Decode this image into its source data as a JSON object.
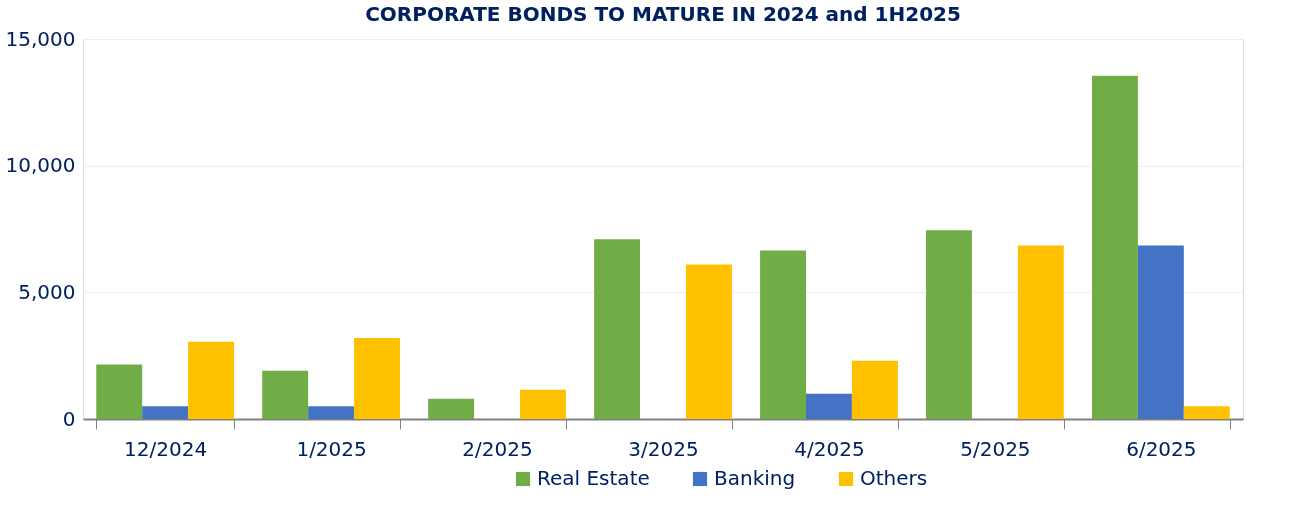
{
  "chart_data": {
    "type": "bar",
    "title": "CORPORATE BONDS TO MATURE IN 2024 and 1H2025",
    "categories": [
      "12/2024",
      "1/2025",
      "2/2025",
      "3/2025",
      "4/2025",
      "5/2025",
      "6/2025"
    ],
    "series": [
      {
        "name": "Real Estate",
        "color": "#70ad47",
        "values": [
          2150,
          1900,
          800,
          7100,
          6650,
          7450,
          13550
        ]
      },
      {
        "name": "Banking",
        "color": "#4472c4",
        "values": [
          500,
          500,
          null,
          null,
          1000,
          null,
          6850
        ]
      },
      {
        "name": "Others",
        "color": "#ffc000",
        "values": [
          3050,
          3200,
          1150,
          6100,
          2300,
          6850,
          500
        ]
      }
    ],
    "ylim": [
      0,
      15000
    ],
    "yticks": [
      0,
      {
        "value": 5000,
        "label": "5,000"
      },
      {
        "value": 10000,
        "label": "10,000"
      },
      {
        "value": 15000,
        "label": "15,000"
      }
    ],
    "grid": "y",
    "legend": "bottom"
  }
}
